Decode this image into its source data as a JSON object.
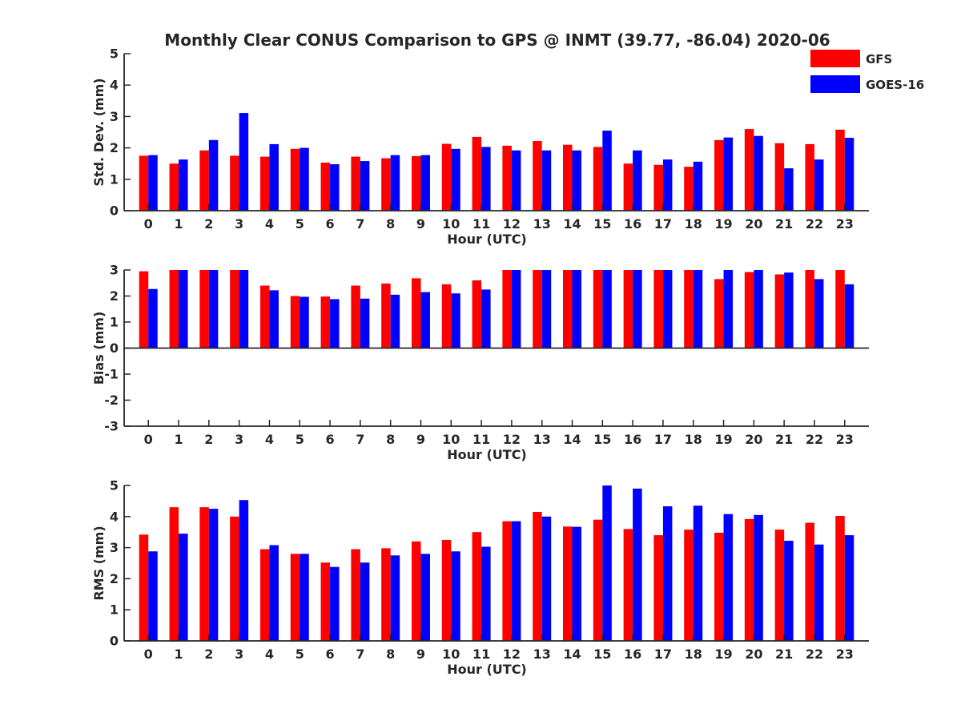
{
  "figure": {
    "title": "Monthly Clear CONUS Comparison to GPS @ INMT (39.77, -86.04) 2020-06",
    "legend": {
      "placement": "top-right",
      "entries": [
        {
          "name": "GFS",
          "color": "#ff0000"
        },
        {
          "name": "GOES-16",
          "color": "#0000ff"
        }
      ]
    }
  },
  "chart_data": [
    {
      "type": "bar",
      "title": "Monthly Clear CONUS Comparison to GPS @ INMT (39.77, -86.04) 2020-06",
      "xlabel": "Hour (UTC)",
      "ylabel": "Std. Dev. (mm)",
      "ylim": [
        0,
        5
      ],
      "yticks": [
        "0",
        "1",
        "2",
        "3",
        "4",
        "5"
      ],
      "categories": [
        "0",
        "1",
        "2",
        "3",
        "4",
        "5",
        "6",
        "7",
        "8",
        "9",
        "10",
        "11",
        "12",
        "13",
        "14",
        "15",
        "16",
        "17",
        "18",
        "19",
        "20",
        "21",
        "22",
        "23"
      ],
      "grid": false,
      "legend": "top-right",
      "series": [
        {
          "name": "GFS",
          "color": "#ff0000",
          "values": [
            1.75,
            1.5,
            1.92,
            1.75,
            1.72,
            1.97,
            1.53,
            1.72,
            1.67,
            1.74,
            2.13,
            2.35,
            2.07,
            2.22,
            2.1,
            2.03,
            1.5,
            1.46,
            1.4,
            2.25,
            2.6,
            2.15,
            2.12,
            2.58
          ]
        },
        {
          "name": "GOES-16",
          "color": "#0000ff",
          "values": [
            1.77,
            1.63,
            2.25,
            3.11,
            2.12,
            2.0,
            1.48,
            1.58,
            1.77,
            1.77,
            1.97,
            2.03,
            1.92,
            1.92,
            1.92,
            2.55,
            1.92,
            1.63,
            1.56,
            2.33,
            2.38,
            1.35,
            1.63,
            2.32
          ]
        }
      ]
    },
    {
      "type": "bar",
      "xlabel": "Hour (UTC)",
      "ylabel": "Bias (mm)",
      "ylim": [
        -3,
        3
      ],
      "yticks": [
        "-3",
        "-2",
        "-1",
        "0",
        "1",
        "2",
        "3"
      ],
      "categories": [
        "0",
        "1",
        "2",
        "3",
        "4",
        "5",
        "6",
        "7",
        "8",
        "9",
        "10",
        "11",
        "12",
        "13",
        "14",
        "15",
        "16",
        "17",
        "18",
        "19",
        "20",
        "21",
        "22",
        "23"
      ],
      "grid": false,
      "series": [
        {
          "name": "GFS",
          "color": "#ff0000",
          "values": [
            2.95,
            3.0,
            3.0,
            3.0,
            2.4,
            2.0,
            1.98,
            2.4,
            2.48,
            2.68,
            2.45,
            2.6,
            3.0,
            3.0,
            3.0,
            3.0,
            3.0,
            3.0,
            3.0,
            2.65,
            2.92,
            2.83,
            3.0,
            3.0
          ]
        },
        {
          "name": "GOES-16",
          "color": "#0000ff",
          "values": [
            2.27,
            3.0,
            3.0,
            3.0,
            2.22,
            1.97,
            1.88,
            1.9,
            2.05,
            2.15,
            2.1,
            2.25,
            3.0,
            3.0,
            3.0,
            3.0,
            3.0,
            3.0,
            3.0,
            3.0,
            3.0,
            2.9,
            2.65,
            2.45
          ]
        }
      ]
    },
    {
      "type": "bar",
      "xlabel": "Hour (UTC)",
      "ylabel": "RMS (mm)",
      "ylim": [
        0,
        5
      ],
      "yticks": [
        "0",
        "1",
        "2",
        "3",
        "4",
        "5"
      ],
      "categories": [
        "0",
        "1",
        "2",
        "3",
        "4",
        "5",
        "6",
        "7",
        "8",
        "9",
        "10",
        "11",
        "12",
        "13",
        "14",
        "15",
        "16",
        "17",
        "18",
        "19",
        "20",
        "21",
        "22",
        "23"
      ],
      "grid": false,
      "series": [
        {
          "name": "GFS",
          "color": "#ff0000",
          "values": [
            3.42,
            4.3,
            4.3,
            4.0,
            2.95,
            2.8,
            2.52,
            2.95,
            2.98,
            3.2,
            3.25,
            3.5,
            3.85,
            4.15,
            3.68,
            3.9,
            3.6,
            3.4,
            3.58,
            3.48,
            3.92,
            3.58,
            3.8,
            4.02
          ]
        },
        {
          "name": "GOES-16",
          "color": "#0000ff",
          "values": [
            2.88,
            3.45,
            4.25,
            4.53,
            3.08,
            2.8,
            2.38,
            2.52,
            2.75,
            2.8,
            2.88,
            3.03,
            3.85,
            4.0,
            3.67,
            5.0,
            4.9,
            4.33,
            4.35,
            4.08,
            4.05,
            3.22,
            3.1,
            3.4
          ]
        }
      ]
    }
  ]
}
